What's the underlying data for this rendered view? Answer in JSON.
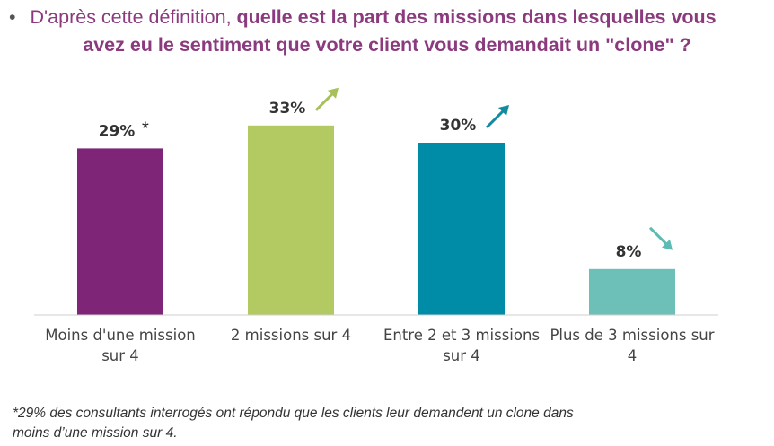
{
  "title": {
    "bullet": "•",
    "prefix": "D'après cette définition, ",
    "bold_line1": "quelle est la part des missions dans lesquelles vous",
    "bold_line2": "avez eu le sentiment que votre client vous demandait un \"clone\" ?"
  },
  "chart_data": {
    "type": "bar",
    "title": "D'après cette définition, quelle est la part des missions dans lesquelles vous avez eu le sentiment que votre client vous demandait un \"clone\" ?",
    "categories": [
      [
        "Moins d'une mission",
        "sur 4"
      ],
      [
        "2 missions sur 4"
      ],
      [
        "Entre 2 et 3 missions",
        "sur 4"
      ],
      [
        "Plus de 3 missions sur",
        "4"
      ]
    ],
    "values": [
      29,
      33,
      30,
      8
    ],
    "labels": [
      "29%",
      "33%",
      "30%",
      "8%"
    ],
    "label_marks": [
      "*",
      "",
      "",
      ""
    ],
    "trend": [
      "none",
      "up",
      "up",
      "down"
    ],
    "colors": [
      "#7e2577",
      "#b3c962",
      "#008ba6",
      "#6cc0b8"
    ],
    "trend_colors": [
      "",
      "#a7c05a",
      "#128aa0",
      "#5cbcb3"
    ],
    "ylim": [
      0,
      35
    ],
    "xlabel": "",
    "ylabel": "",
    "grid": false
  },
  "footnote": {
    "line1": "*29% des consultants interrogés ont répondu que les clients leur demandent un clone dans",
    "line2": "moins d’une mission sur 4."
  }
}
